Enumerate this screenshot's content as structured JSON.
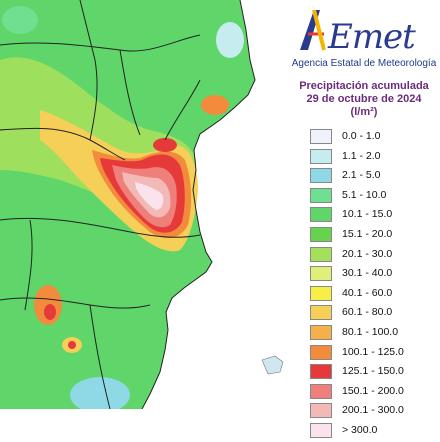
{
  "logo": {
    "text": "AEmet",
    "subtitle": "Agencia Estatal de Meteorología"
  },
  "title": {
    "line1": "Precipitación acumulada",
    "line2": "29 de octubre de 2024",
    "unit": "(l/m²)"
  },
  "legend": [
    {
      "label": "0.0 - 1.0",
      "color": "#eef3fb"
    },
    {
      "label": "1.1 - 2.0",
      "color": "#c6ecf0"
    },
    {
      "label": "2.1 - 5.0",
      "color": "#8fd9e6"
    },
    {
      "label": "5.1 - 10.0",
      "color": "#6fe08f"
    },
    {
      "label": "10.1 - 15.0",
      "color": "#5fd56a"
    },
    {
      "label": "15.1 - 20.0",
      "color": "#67d24b"
    },
    {
      "label": "20.1 - 30.0",
      "color": "#a5e05d"
    },
    {
      "label": "30.1 - 40.0",
      "color": "#dff07a"
    },
    {
      "label": "40.1 - 60.0",
      "color": "#f7ef48"
    },
    {
      "label": "60.1 - 80.0",
      "color": "#f5cf58"
    },
    {
      "label": "80.1 - 100.0",
      "color": "#f4b04a"
    },
    {
      "label": "100.1 - 125.0",
      "color": "#f28c3c"
    },
    {
      "label": "125.1 - 150.0",
      "color": "#e63a3a"
    },
    {
      "label": "150.1 - 200.0",
      "color": "#ef7f7a"
    },
    {
      "label": "200.1 - 300.0",
      "color": "#f2b9b6"
    },
    {
      "label": "> 300.0",
      "color": "#fbe3ee"
    }
  ]
}
